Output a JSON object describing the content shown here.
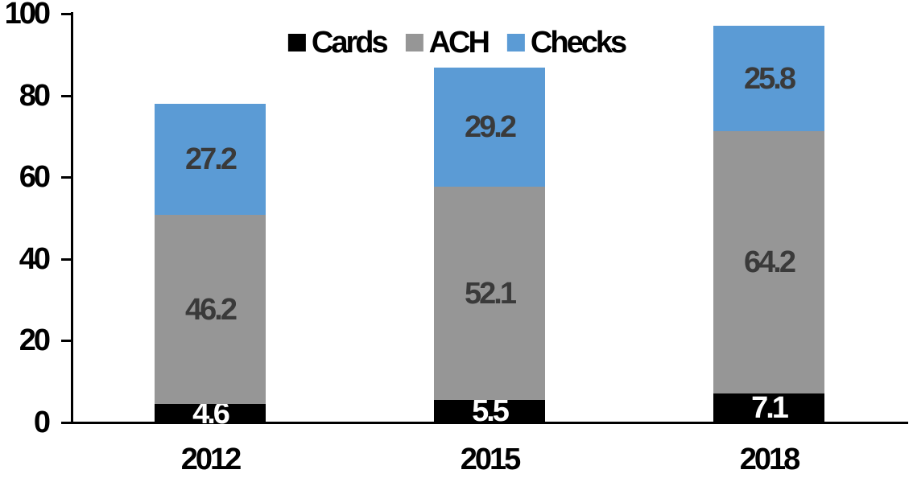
{
  "chart_data": {
    "type": "bar",
    "subtype": "stacked-column",
    "title": "",
    "xlabel": "",
    "ylabel": "",
    "categories": [
      "2012",
      "2015",
      "2018"
    ],
    "series": [
      {
        "name": "Cards",
        "values": [
          4.6,
          5.5,
          7.1
        ],
        "color": "#000000",
        "label_color": "#ffffff"
      },
      {
        "name": "ACH",
        "values": [
          46.2,
          52.1,
          64.2
        ],
        "color": "#969696",
        "label_color": "#3a3a3a"
      },
      {
        "name": "Checks",
        "values": [
          27.2,
          29.2,
          25.8
        ],
        "color": "#5b9bd5",
        "label_color": "#3a3a3a"
      }
    ],
    "stack_totals": [
      78.0,
      86.8,
      97.1
    ],
    "ylim": [
      0,
      100
    ],
    "yticks": [
      0,
      20,
      40,
      60,
      80,
      100
    ],
    "grid": false,
    "value_labels_shown": true,
    "legend_position": "top-center",
    "axis_color": "#000000",
    "background_color": "#ffffff"
  }
}
